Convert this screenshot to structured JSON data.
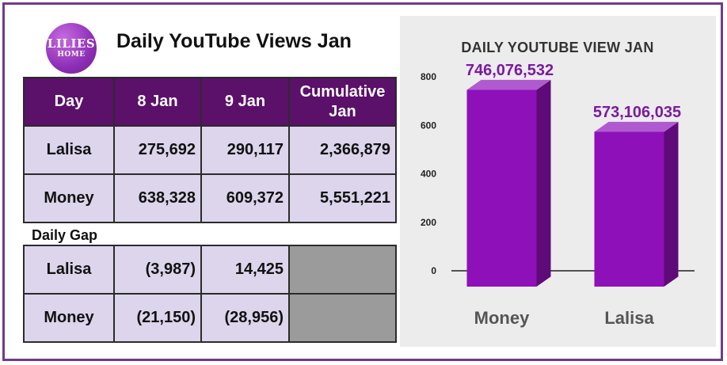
{
  "logo": {
    "text_top": "LILIES",
    "text_bottom": "HOME"
  },
  "title": "Daily YouTube Views Jan",
  "main_table": {
    "headers": [
      "Day",
      "8 Jan",
      "9 Jan",
      "Cumulative Jan"
    ],
    "rows": [
      {
        "name": "Lalisa",
        "jan8": "275,692",
        "jan9": "290,117",
        "cumulative": "2,366,879"
      },
      {
        "name": "Money",
        "jan8": "638,328",
        "jan9": "609,372",
        "cumulative": "5,551,221"
      }
    ]
  },
  "daily_gap": {
    "label": "Daily Gap",
    "rows": [
      {
        "name": "Lalisa",
        "jan8": "(3,987)",
        "jan9": "14,425"
      },
      {
        "name": "Money",
        "jan8": "(21,150)",
        "jan9": "(28,956)"
      }
    ]
  },
  "chart_data": {
    "type": "bar",
    "title": "DAILY YOUTUBE VIEW JAN",
    "categories": [
      "Money",
      "Lalisa"
    ],
    "values": [
      746076532,
      573106035
    ],
    "data_labels": [
      "746,076,532",
      "573,106,035"
    ],
    "yticks": [
      "0",
      "200",
      "400",
      "600",
      "800"
    ],
    "ylim": [
      0,
      800
    ],
    "bar_color": "#8e10b8",
    "bar_side_color": "#5e0a78",
    "bar_top_color": "#b05ad0",
    "grid": false,
    "legend": "none"
  }
}
